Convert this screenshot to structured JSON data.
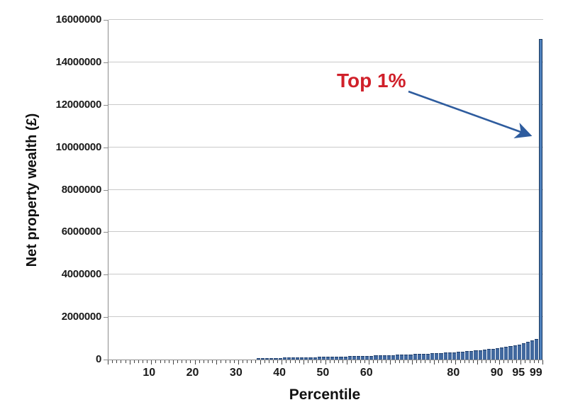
{
  "chart_data": {
    "type": "bar",
    "title": "",
    "xlabel": "Percentile",
    "ylabel": "Net property wealth (£)",
    "x_start_percentile": 1,
    "x_end_percentile": 100,
    "ylim": [
      0,
      16000000
    ],
    "yticks": [
      0,
      2000000,
      4000000,
      6000000,
      8000000,
      10000000,
      12000000,
      14000000,
      16000000
    ],
    "xtick_labels": [
      10,
      20,
      30,
      40,
      50,
      60,
      80,
      90,
      95,
      99
    ],
    "grid": "horizontal",
    "legend": "none",
    "annotation": {
      "text": "Top 1%",
      "target_percentile": 100,
      "target_value": 15100000
    },
    "values": [
      0,
      0,
      0,
      0,
      0,
      0,
      0,
      0,
      0,
      0,
      0,
      0,
      0,
      0,
      0,
      0,
      0,
      0,
      0,
      0,
      0,
      0,
      0,
      0,
      0,
      0,
      0,
      0,
      0,
      0,
      0,
      0,
      0,
      0,
      10000,
      20000,
      30000,
      40000,
      45000,
      50000,
      55000,
      60000,
      64000,
      68000,
      72000,
      76000,
      80000,
      84000,
      88000,
      92000,
      96000,
      100000,
      105000,
      110000,
      115000,
      120000,
      125000,
      130000,
      135000,
      140000,
      146000,
      152000,
      158000,
      165000,
      172000,
      179000,
      186000,
      194000,
      202000,
      210000,
      219000,
      228000,
      237000,
      247000,
      257000,
      268000,
      279000,
      291000,
      303000,
      316000,
      330000,
      345000,
      360000,
      377000,
      395000,
      414000,
      434000,
      456000,
      480000,
      506000,
      535000,
      567000,
      602000,
      641000,
      685000,
      735000,
      795000,
      865000,
      950000,
      15100000
    ]
  },
  "colors": {
    "bar_fill": "#41689e",
    "bar_border": "#1c3c6a",
    "spike_fill": "#4f81bd",
    "spike_border": "#17365d",
    "arrow": "#2e5c9e",
    "annotation_text": "#d0202a",
    "gridline": "#c9c9c9",
    "axis": "#8c8c8c",
    "tick": "#444444"
  }
}
